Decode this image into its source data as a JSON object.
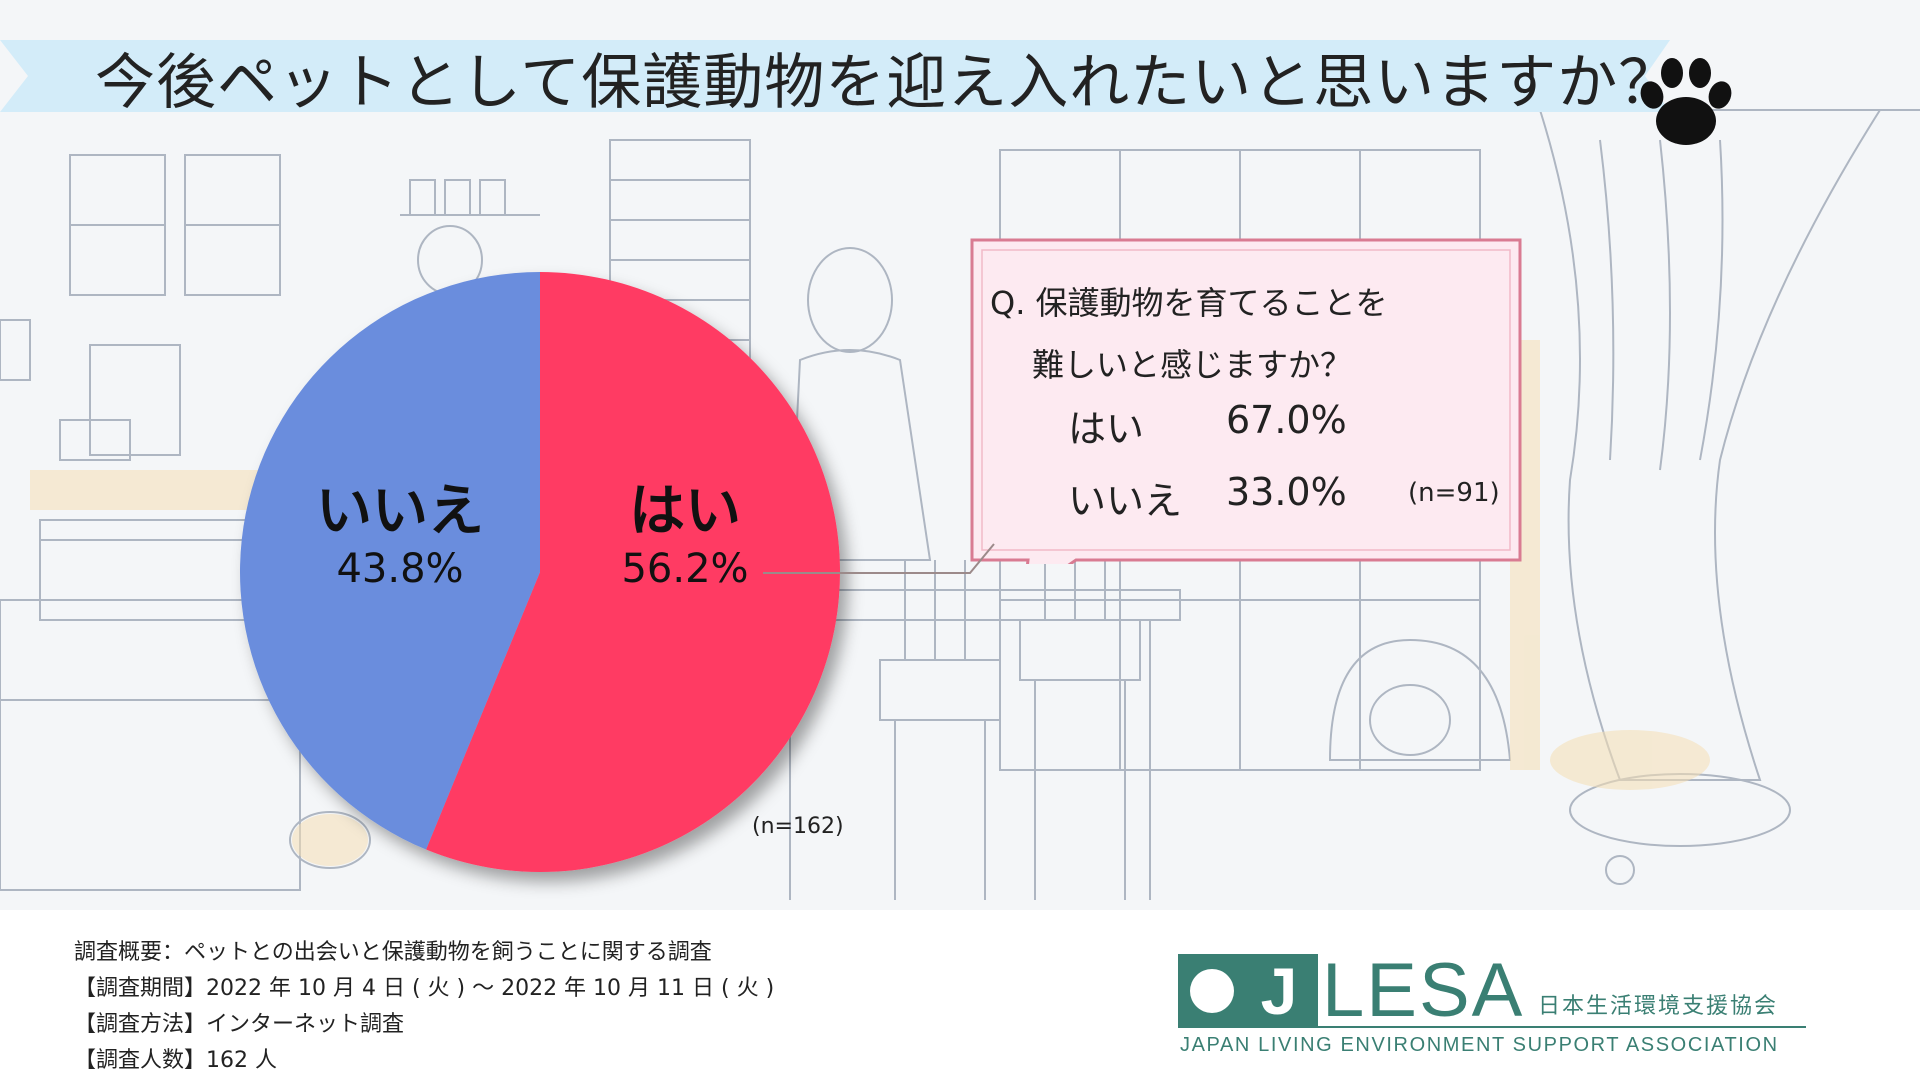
{
  "title": "今後ペットとして保護動物を迎え入れたいと思いますか？",
  "colors": {
    "yes": "#ff3b63",
    "no": "#6a8ddd",
    "banner": "#d3ecf9",
    "callout_bg": "#fdeaf1",
    "callout_border": "#d97b92",
    "logo": "#3a7f73"
  },
  "chart_data": {
    "type": "pie",
    "categories": [
      "はい",
      "いいえ"
    ],
    "values": [
      56.2,
      43.8
    ],
    "labels": [
      "56.2%",
      "43.8%"
    ],
    "n": "(n=162)"
  },
  "callout": {
    "question_line1": "Q. 保護動物を育てることを",
    "question_line2": "難しいと感じますか？",
    "answers": [
      {
        "label": "はい",
        "value": "67.0%"
      },
      {
        "label": "いいえ",
        "value": "33.0%"
      }
    ],
    "n": "(n=91)"
  },
  "survey": {
    "overview": "調査概要：ペットとの出会いと保護動物を飼うことに関する調査",
    "period": "【調査期間】2022 年 10 月 4 日 ( 火 ) ～ 2022 年 10 月 11 日 ( 火 )",
    "method": "【調査方法】インターネット調査",
    "count": "【調査人数】162 人"
  },
  "logo": {
    "j": "J",
    "lesa": "LESA",
    "name_ja": "日本生活環境支援協会",
    "name_en": "JAPAN LIVING ENVIRONMENT SUPPORT ASSOCIATION"
  },
  "icons": {
    "paw": "paw-icon"
  }
}
